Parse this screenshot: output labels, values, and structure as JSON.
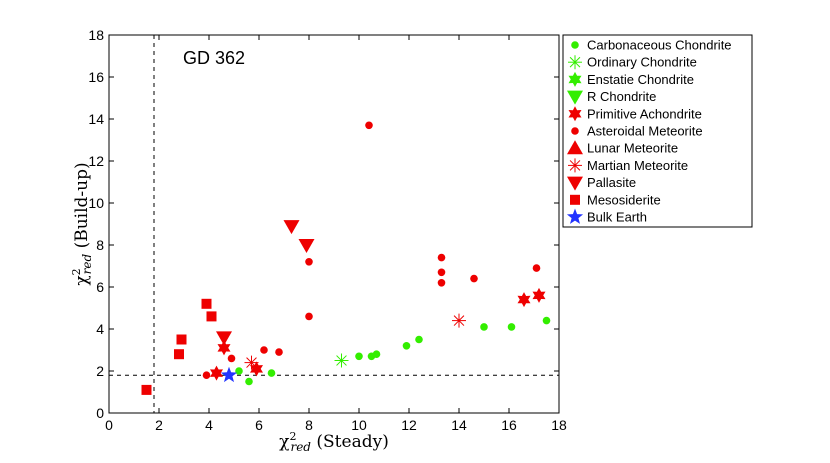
{
  "chart_data": {
    "type": "scatter",
    "title": "",
    "annotation": "GD 362",
    "xlabel_sym": "χ",
    "xlabel_sup": "2",
    "xlabel_sub": "red",
    "xlabel_text": " (Steady)",
    "ylabel_sym": "χ",
    "ylabel_sup": "2",
    "ylabel_sub": "red",
    "ylabel_text": " (Build-up)",
    "xlim": [
      0,
      18
    ],
    "ylim": [
      0,
      18
    ],
    "xticks": [
      0,
      2,
      4,
      6,
      8,
      10,
      12,
      14,
      16,
      18
    ],
    "yticks": [
      0,
      2,
      4,
      6,
      8,
      10,
      12,
      14,
      16,
      18
    ],
    "grid": false,
    "legend_position": "outside-right",
    "ref_x": 1.8,
    "ref_y": 1.8,
    "series": [
      {
        "name": "Carbonaceous Chondrite",
        "marker": "circle",
        "color": "#33ee00",
        "points": [
          [
            5.2,
            2.0
          ],
          [
            5.6,
            1.5
          ],
          [
            6.5,
            1.9
          ],
          [
            10.0,
            2.7
          ],
          [
            10.5,
            2.7
          ],
          [
            10.7,
            2.8
          ],
          [
            11.9,
            3.2
          ],
          [
            12.4,
            3.5
          ],
          [
            15.0,
            4.1
          ],
          [
            16.1,
            4.1
          ],
          [
            17.5,
            4.4
          ]
        ]
      },
      {
        "name": "Ordinary Chondrite",
        "marker": "asterisk",
        "color": "#33ee00",
        "points": [
          [
            9.3,
            2.5
          ]
        ]
      },
      {
        "name": "Enstatie Chondrite",
        "marker": "hexagram",
        "color": "#33ee00",
        "points": []
      },
      {
        "name": "R Chondrite",
        "marker": "triangle-down",
        "color": "#33ee00",
        "points": []
      },
      {
        "name": "Primitive Achondrite",
        "marker": "hexagram",
        "color": "#ee0000",
        "points": [
          [
            4.3,
            1.9
          ],
          [
            4.6,
            3.1
          ],
          [
            5.9,
            2.1
          ],
          [
            16.6,
            5.4
          ],
          [
            17.2,
            5.6
          ]
        ]
      },
      {
        "name": "Asteroidal Meteorite",
        "marker": "circle",
        "color": "#ee0000",
        "points": [
          [
            3.9,
            1.8
          ],
          [
            4.9,
            2.6
          ],
          [
            6.2,
            3.0
          ],
          [
            6.8,
            2.9
          ],
          [
            8.0,
            4.6
          ],
          [
            8.0,
            7.2
          ],
          [
            10.4,
            13.7
          ],
          [
            13.3,
            7.4
          ],
          [
            13.3,
            6.7
          ],
          [
            13.3,
            6.2
          ],
          [
            14.6,
            6.4
          ],
          [
            17.1,
            6.9
          ]
        ]
      },
      {
        "name": "Lunar Meteorite",
        "marker": "triangle-up",
        "color": "#ee0000",
        "points": []
      },
      {
        "name": "Martian Meteorite",
        "marker": "asterisk",
        "color": "#ee0000",
        "points": [
          [
            5.7,
            2.4
          ],
          [
            14.0,
            4.4
          ]
        ]
      },
      {
        "name": "Pallasite",
        "marker": "triangle-down",
        "color": "#ee0000",
        "points": [
          [
            4.6,
            3.6
          ],
          [
            7.3,
            8.9
          ],
          [
            7.9,
            8.0
          ]
        ]
      },
      {
        "name": "Mesosiderite",
        "marker": "square",
        "color": "#ee0000",
        "points": [
          [
            1.5,
            1.1
          ],
          [
            2.8,
            2.8
          ],
          [
            2.9,
            3.5
          ],
          [
            3.9,
            5.2
          ],
          [
            4.1,
            4.6
          ]
        ]
      },
      {
        "name": "Bulk Earth",
        "marker": "star",
        "color": "#2233ff",
        "points": [
          [
            4.8,
            1.8
          ]
        ]
      }
    ]
  }
}
